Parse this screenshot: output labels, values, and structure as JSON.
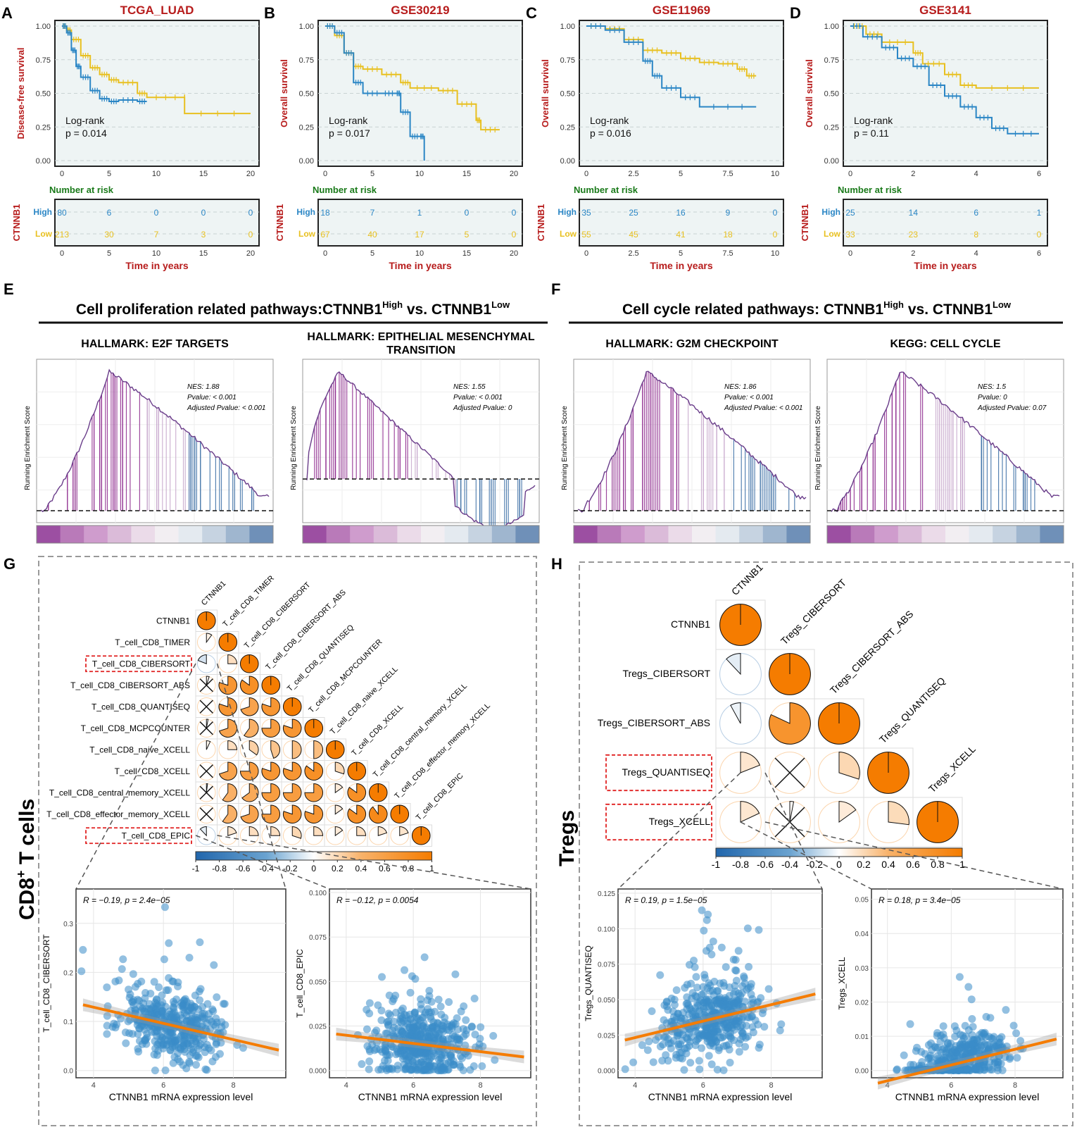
{
  "colors": {
    "high": "#2b86c5",
    "low": "#e8c020",
    "title_red": "#b71c1c",
    "risk_green": "#1a7a1a",
    "panel_bg": "#eef4f4",
    "gsea_purple": "#8e2a8e",
    "gsea_blue": "#3a6ea5",
    "corr_orange": "#f57c00",
    "corr_blue": "#2166ac",
    "scatter_point": "#3a8dc8",
    "fit_line": "#f57c00"
  },
  "km_common": {
    "number_at_risk": "Number at risk",
    "time_label": "Time in years",
    "gene": "CTNNB1",
    "logrank": "Log-rank",
    "group_high": "High",
    "group_low": "Low",
    "y_ticks": [
      "1.00",
      "0.75",
      "0.50",
      "0.25",
      "0.00"
    ]
  },
  "km_panels": [
    {
      "letter": "A",
      "title": "TCGA_LUAD",
      "ylabel": "Disease-free survival",
      "pvalue": "p = 0.014",
      "xticks": [
        "0",
        "5",
        "10",
        "15",
        "20"
      ],
      "xmax": 20,
      "high_risk": [
        "80",
        "6",
        "0",
        "0",
        "0"
      ],
      "low_risk": [
        "213",
        "30",
        "7",
        "3",
        "0"
      ],
      "high_curve": [
        [
          0,
          1
        ],
        [
          0.5,
          0.95
        ],
        [
          1,
          0.82
        ],
        [
          1.5,
          0.7
        ],
        [
          2,
          0.62
        ],
        [
          3,
          0.52
        ],
        [
          4,
          0.46
        ],
        [
          5,
          0.44
        ],
        [
          6,
          0.45
        ],
        [
          8,
          0.44
        ],
        [
          9,
          0.44
        ]
      ],
      "low_curve": [
        [
          0,
          1
        ],
        [
          0.5,
          0.97
        ],
        [
          1,
          0.9
        ],
        [
          2,
          0.78
        ],
        [
          3,
          0.69
        ],
        [
          4,
          0.64
        ],
        [
          5,
          0.6
        ],
        [
          6,
          0.58
        ],
        [
          8,
          0.5
        ],
        [
          9,
          0.47
        ],
        [
          13,
          0.47
        ],
        [
          13,
          0.35
        ],
        [
          20,
          0.35
        ]
      ]
    },
    {
      "letter": "B",
      "title": "GSE30219",
      "ylabel": "Overall survival",
      "pvalue": "p = 0.017",
      "xticks": [
        "0",
        "5",
        "10",
        "15",
        "20"
      ],
      "xmax": 20,
      "high_risk": [
        "18",
        "7",
        "1",
        "0",
        "0"
      ],
      "low_risk": [
        "67",
        "40",
        "17",
        "5",
        "0"
      ],
      "high_curve": [
        [
          0,
          1
        ],
        [
          1,
          0.95
        ],
        [
          2,
          0.8
        ],
        [
          3,
          0.58
        ],
        [
          4,
          0.5
        ],
        [
          6,
          0.5
        ],
        [
          7.5,
          0.5
        ],
        [
          8,
          0.36
        ],
        [
          9,
          0.18
        ],
        [
          10,
          0.18
        ],
        [
          10.5,
          0
        ]
      ],
      "low_curve": [
        [
          0,
          1
        ],
        [
          1,
          0.93
        ],
        [
          2,
          0.8
        ],
        [
          3,
          0.7
        ],
        [
          4,
          0.68
        ],
        [
          6,
          0.64
        ],
        [
          8,
          0.58
        ],
        [
          9,
          0.54
        ],
        [
          12,
          0.52
        ],
        [
          14,
          0.42
        ],
        [
          16,
          0.3
        ],
        [
          16.5,
          0.23
        ],
        [
          18.5,
          0.23
        ]
      ]
    },
    {
      "letter": "C",
      "title": "GSE11969",
      "ylabel": "Overall survival",
      "pvalue": "p = 0.016",
      "xticks": [
        "0",
        "2.5",
        "5",
        "7.5",
        "10"
      ],
      "xmax": 10,
      "high_risk": [
        "35",
        "25",
        "16",
        "9",
        "0"
      ],
      "low_risk": [
        "55",
        "45",
        "41",
        "18",
        "0"
      ],
      "high_curve": [
        [
          0,
          1
        ],
        [
          1,
          0.97
        ],
        [
          2,
          0.88
        ],
        [
          3,
          0.74
        ],
        [
          3.5,
          0.63
        ],
        [
          4,
          0.54
        ],
        [
          5,
          0.47
        ],
        [
          6,
          0.4
        ],
        [
          9,
          0.4
        ]
      ],
      "low_curve": [
        [
          0,
          1
        ],
        [
          1,
          0.98
        ],
        [
          2,
          0.9
        ],
        [
          3,
          0.82
        ],
        [
          4,
          0.8
        ],
        [
          5,
          0.76
        ],
        [
          6,
          0.73
        ],
        [
          7,
          0.72
        ],
        [
          8,
          0.68
        ],
        [
          8.5,
          0.63
        ],
        [
          9,
          0.63
        ]
      ]
    },
    {
      "letter": "D",
      "title": "GSE3141",
      "ylabel": "Overall survival",
      "pvalue": "p = 0.11",
      "xticks": [
        "0",
        "2",
        "4",
        "6"
      ],
      "xmax": 6,
      "high_risk": [
        "25",
        "14",
        "6",
        "1"
      ],
      "low_risk": [
        "33",
        "23",
        "8",
        "0"
      ],
      "high_curve": [
        [
          0,
          1
        ],
        [
          0.4,
          0.92
        ],
        [
          1,
          0.84
        ],
        [
          1.5,
          0.76
        ],
        [
          2,
          0.7
        ],
        [
          2.5,
          0.56
        ],
        [
          3,
          0.48
        ],
        [
          3.5,
          0.4
        ],
        [
          4,
          0.32
        ],
        [
          4.5,
          0.24
        ],
        [
          5,
          0.2
        ],
        [
          6,
          0.2
        ]
      ],
      "low_curve": [
        [
          0,
          1
        ],
        [
          0.5,
          0.94
        ],
        [
          1,
          0.88
        ],
        [
          2,
          0.8
        ],
        [
          2.3,
          0.72
        ],
        [
          3,
          0.64
        ],
        [
          3.5,
          0.56
        ],
        [
          4,
          0.54
        ],
        [
          6,
          0.54
        ]
      ]
    }
  ],
  "section_E": {
    "letter": "E",
    "title_main": "Cell proliferation related pathways:CTNNB1",
    "sup1": "High",
    "vs": " vs. CTNNB1",
    "sup2": "Low"
  },
  "section_F": {
    "letter": "F",
    "title_main": "Cell cycle related pathways: CTNNB1",
    "sup1": "High",
    "vs": " vs. CTNNB1",
    "sup2": "Low"
  },
  "gsea_common": {
    "ylabel": "Running Enrichment Score"
  },
  "gsea_panels": [
    {
      "title": "HALLMARK: E2F TARGETS",
      "title2": "",
      "nes": "NES: 1.88",
      "pvalue": "Pvalue: < 0.001",
      "adj": "Adjusted Pvalue: < 0.001",
      "peak": 0.32,
      "neg": false
    },
    {
      "title": "HALLMARK: EPITHELIAL MESENCHYMAL",
      "title2": "TRANSITION",
      "nes": "NES: 1.55",
      "pvalue": "Pvalue: < 0.001",
      "adj": "Adjusted Pvalue: 0",
      "peak": 0.12,
      "neg": true
    },
    {
      "title": "HALLMARK: G2M CHECKPOINT",
      "title2": "",
      "nes": "NES: 1.86",
      "pvalue": "Pvalue: < 0.001",
      "adj": "Adjusted Pvalue: < 0.001",
      "peak": 0.3,
      "neg": false
    },
    {
      "title": "KEGG: CELL CYCLE",
      "title2": "",
      "nes": "NES: 1.5",
      "pvalue": "Pvalue: 0",
      "adj": "Adjusted Pvalue: 0.07",
      "peak": 0.3,
      "neg": false
    }
  ],
  "section_G": {
    "letter": "G",
    "side_label": "CD8",
    "side_sup": "+",
    "side_rest": " T cells",
    "variables": [
      "CTNNB1",
      "T_cell_CD8_TIMER",
      "T_cell_CD8_CIBERSORT",
      "T_cell_CD8_CIBERSORT_ABS",
      "T_cell_CD8_QUANTISEQ",
      "T_cell_CD8_MCPCOUNTER",
      "T_cell_CD8_naive_XCELL",
      "T_cell_CD8_XCELL",
      "T_cell_CD8_central_memory_XCELL",
      "T_cell_CD8_effector_memory_XCELL",
      "T_cell_CD8_EPIC"
    ],
    "highlighted": [
      "T_cell_CD8_CIBERSORT",
      "T_cell_CD8_EPIC"
    ],
    "matrix": [
      [
        1
      ],
      [
        0.1,
        1
      ],
      [
        -0.19,
        0.25,
        1
      ],
      [
        0.05,
        0.8,
        0.85,
        1
      ],
      [
        0,
        0.8,
        0.7,
        0.8,
        1
      ],
      [
        0.03,
        0.7,
        0.6,
        0.75,
        0.8,
        1
      ],
      [
        0.07,
        0.25,
        0.35,
        0.45,
        0.5,
        0.5,
        1
      ],
      [
        0,
        0.7,
        0.75,
        0.8,
        0.8,
        0.85,
        0.3,
        1
      ],
      [
        0.02,
        0.6,
        0.65,
        0.75,
        0.75,
        0.75,
        0.15,
        0.85,
        1
      ],
      [
        0,
        0.6,
        0.7,
        0.75,
        0.8,
        0.8,
        0.15,
        0.85,
        0.9,
        1
      ],
      [
        -0.12,
        0.2,
        0.25,
        0.25,
        0.3,
        0.25,
        0.15,
        0.25,
        0.2,
        0.2,
        1
      ]
    ],
    "colorbar_ticks": [
      "-1",
      "-0.8",
      "-0.6",
      "-0.4",
      "-0.2",
      "0",
      "0.2",
      "0.4",
      "0.6",
      "0.8",
      "1"
    ],
    "scatter": [
      {
        "ylabel": "T_cell_CD8_CIBERSORT",
        "xlabel": "CTNNB1 mRNA expression level",
        "stat": "R = −0.19, p = 2.4e−05",
        "yticks": [
          "0.0",
          "0.1",
          "0.2",
          "0.3"
        ],
        "ymax": 0.37,
        "xticks": [
          "4",
          "6",
          "8"
        ],
        "xmin": 3.5,
        "xmax": 9.5,
        "slope": -0.0165,
        "intercept": 0.195,
        "ybase": 0.09,
        "spread": 0.05,
        "floor": 0
      },
      {
        "ylabel": "T_cell_CD8_EPIC",
        "xlabel": "CTNNB1 mRNA expression level",
        "stat": "R = −0.12, p = 0.0054",
        "yticks": [
          "0.000",
          "0.025",
          "0.050",
          "0.075",
          "0.100"
        ],
        "ymax": 0.102,
        "xticks": [
          "4",
          "6",
          "8"
        ],
        "xmin": 3.5,
        "xmax": 9.5,
        "slope": -0.0023,
        "intercept": 0.029,
        "ybase": 0.015,
        "spread": 0.014,
        "floor": 0
      }
    ]
  },
  "section_H": {
    "letter": "H",
    "side_label": "Tregs",
    "variables": [
      "CTNNB1",
      "Tregs_CIBERSORT",
      "Tregs_CIBERSORT_ABS",
      "Tregs_QUANTISEQ",
      "Tregs_XCELL"
    ],
    "highlighted": [
      "Tregs_QUANTISEQ",
      "Tregs_XCELL"
    ],
    "matrix": [
      [
        1
      ],
      [
        -0.12,
        1
      ],
      [
        -0.08,
        0.82,
        1
      ],
      [
        0.19,
        0,
        0.3,
        1
      ],
      [
        0.18,
        0.03,
        0.15,
        0.27,
        1
      ]
    ],
    "colorbar_ticks": [
      "-1",
      "-0.8",
      "-0.6",
      "-0.4",
      "-0.2",
      "0",
      "0.2",
      "0.4",
      "0.6",
      "0.8",
      "1"
    ],
    "scatter": [
      {
        "ylabel": "Tregs_QUANTISEQ",
        "xlabel": "CTNNB1 mRNA expression level",
        "stat": "R = 0.19, p = 1.5e−05",
        "yticks": [
          "0.000",
          "0.025",
          "0.050",
          "0.075",
          "0.100",
          "0.125"
        ],
        "ymax": 0.128,
        "xticks": [
          "4",
          "6",
          "8"
        ],
        "xmin": 3.5,
        "xmax": 9.5,
        "slope": 0.0058,
        "intercept": 0.0,
        "ybase": 0.035,
        "spread": 0.02,
        "floor": 0
      },
      {
        "ylabel": "Tregs_XCELL",
        "xlabel": "CTNNB1 mRNA expression level",
        "stat": "R = 0.18, p = 3.4e−05",
        "yticks": [
          "0.00",
          "0.01",
          "0.02",
          "0.03",
          "0.04",
          "0.05"
        ],
        "ymax": 0.053,
        "xticks": [
          "4",
          "6",
          "8"
        ],
        "xmin": 3.5,
        "xmax": 9.5,
        "slope": 0.0023,
        "intercept": -0.0122,
        "ybase": 0.002,
        "spread": 0.006,
        "floor": 0
      }
    ]
  },
  "chart_data": [
    {
      "type": "line",
      "title": "TCGA_LUAD",
      "xlabel": "Time in years",
      "ylabel": "Disease-free survival",
      "series": [
        {
          "name": "High",
          "n_at_risk": [
            80,
            6,
            0,
            0,
            0
          ]
        },
        {
          "name": "Low",
          "n_at_risk": [
            213,
            30,
            7,
            3,
            0
          ]
        }
      ],
      "annotation": "Log-rank p = 0.014"
    },
    {
      "type": "line",
      "title": "GSE30219",
      "xlabel": "Time in years",
      "ylabel": "Overall survival",
      "series": [
        {
          "name": "High",
          "n_at_risk": [
            18,
            7,
            1,
            0,
            0
          ]
        },
        {
          "name": "Low",
          "n_at_risk": [
            67,
            40,
            17,
            5,
            0
          ]
        }
      ],
      "annotation": "Log-rank p = 0.017"
    },
    {
      "type": "line",
      "title": "GSE11969",
      "xlabel": "Time in years",
      "ylabel": "Overall survival",
      "series": [
        {
          "name": "High",
          "n_at_risk": [
            35,
            25,
            16,
            9,
            0
          ]
        },
        {
          "name": "Low",
          "n_at_risk": [
            55,
            45,
            41,
            18,
            0
          ]
        }
      ],
      "annotation": "Log-rank p = 0.016"
    },
    {
      "type": "line",
      "title": "GSE3141",
      "xlabel": "Time in years",
      "ylabel": "Overall survival",
      "series": [
        {
          "name": "High",
          "n_at_risk": [
            25,
            14,
            6,
            1
          ]
        },
        {
          "name": "Low",
          "n_at_risk": [
            33,
            23,
            8,
            0
          ]
        }
      ],
      "annotation": "Log-rank p = 0.11"
    },
    {
      "type": "scatter",
      "title": "CTNNB1 vs T_cell_CD8_CIBERSORT",
      "stat": "R = -0.19, p = 2.4e-05"
    },
    {
      "type": "scatter",
      "title": "CTNNB1 vs T_cell_CD8_EPIC",
      "stat": "R = -0.12, p = 0.0054"
    },
    {
      "type": "scatter",
      "title": "CTNNB1 vs Tregs_QUANTISEQ",
      "stat": "R = 0.19, p = 1.5e-05"
    },
    {
      "type": "scatter",
      "title": "CTNNB1 vs Tregs_XCELL",
      "stat": "R = 0.18, p = 3.4e-05"
    }
  ]
}
